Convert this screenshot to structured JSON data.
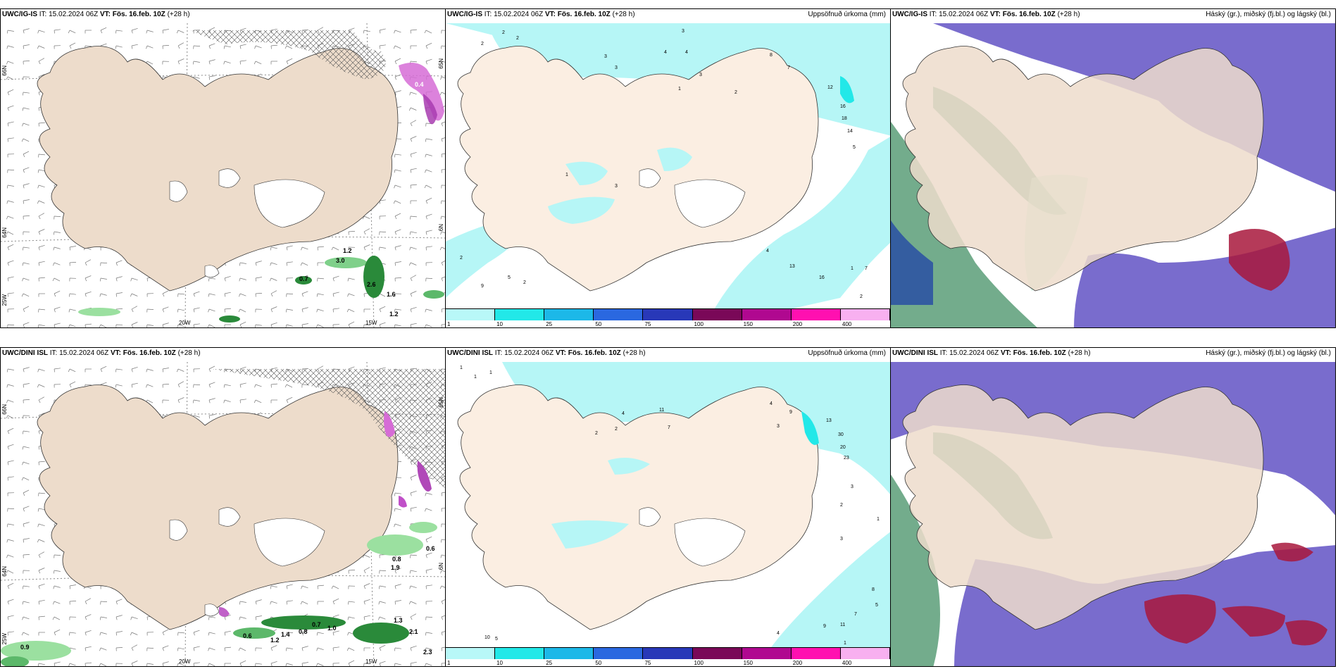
{
  "rows": [
    {
      "model": "UWC/IG-IS",
      "it_label": "IT:",
      "it_value": "15.02.2024 06Z",
      "vt_label": "VT:",
      "vt_value": "Fös. 16.feb. 10Z",
      "lead": "(+28 h)",
      "wind_values": [
        "0.4",
        "1.2",
        "3.0",
        "0.7",
        "2.6",
        "1.6",
        "1.2"
      ],
      "precip_values": [
        "2",
        "2",
        "2",
        "3",
        "3",
        "4",
        "4",
        "3",
        "8",
        "7",
        "3",
        "1",
        "2",
        "12",
        "16",
        "18",
        "14",
        "5",
        "1",
        "3",
        "2",
        "9",
        "5",
        "2",
        "4",
        "13",
        "16",
        "1",
        "7",
        "2"
      ],
      "top_right_precip": "Uppsöfnuð úrkoma (mm)",
      "top_right_cloud": "Háský (gr.), miðský (fj.bl.) og lágský (bl.)"
    },
    {
      "model": "UWC/DINI ISL",
      "it_label": "IT:",
      "it_value": "15.02.2024 06Z",
      "vt_label": "VT:",
      "vt_value": "Fös. 16.feb. 10Z",
      "lead": "(+28 h)",
      "wind_values": [
        "0.6",
        "0.8",
        "1.9",
        "0.6",
        "1.2",
        "1.4",
        "0.7",
        "1.0",
        "1.3",
        "2.1",
        "0.8",
        "0.9",
        "2.3"
      ],
      "precip_values": [
        "1",
        "1",
        "1",
        "4",
        "2",
        "2",
        "11",
        "7",
        "4",
        "3",
        "9",
        "13",
        "30",
        "20",
        "23",
        "2",
        "3",
        "1",
        "3",
        "8",
        "5",
        "7",
        "11",
        "9",
        "10",
        "5",
        "1",
        "4"
      ],
      "top_right_precip": "Uppsöfnuð úrkoma (mm)",
      "top_right_cloud": "Háský (gr.), miðský (fj.bl.) og lágský (bl.)"
    }
  ],
  "colorbar": {
    "labels": [
      "1",
      "10",
      "25",
      "50",
      "75",
      "100",
      "150",
      "200",
      "400"
    ],
    "colors": [
      "#b8f8f8",
      "#22e8e8",
      "#1cb8e8",
      "#2a68e0",
      "#2838b8",
      "#7a0858",
      "#b00890",
      "#ff10b0",
      "#f8b0f0"
    ]
  },
  "axes": {
    "lon_20w": "20W",
    "lon_15w": "15W",
    "lat_66n": "66N",
    "lat_64n": "64N",
    "lat_25w": "25W",
    "lat_65": "65N",
    "lat_6": "6N"
  },
  "colors": {
    "land": "#eddccb",
    "precip_land": "#fbeee2",
    "ice": "#ffffff",
    "precip_sea": "#b6f6f6",
    "high_cloud": "#5a9e78",
    "mid_cloud": "#6a5cc8",
    "low_cloud": "#1a3ca8",
    "red_cloud": "#a8183c"
  }
}
